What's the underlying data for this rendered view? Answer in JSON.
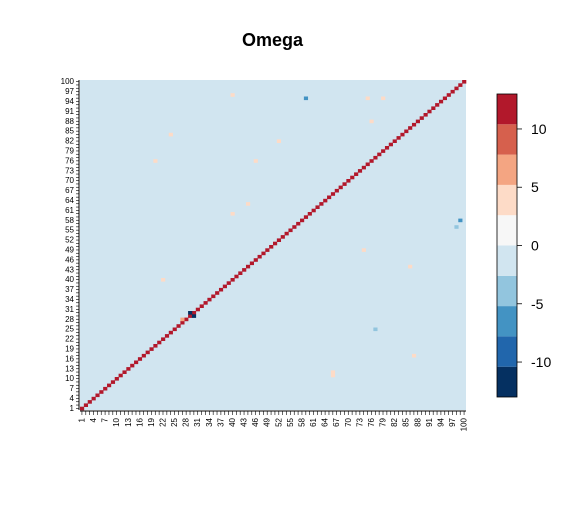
{
  "chart_data": {
    "type": "heatmap",
    "title": "Omega",
    "xlabel": "",
    "ylabel": "",
    "n": 100,
    "x_tick_labels": [
      "1",
      "4",
      "7",
      "10",
      "13",
      "16",
      "19",
      "22",
      "25",
      "28",
      "31",
      "34",
      "37",
      "40",
      "43",
      "46",
      "49",
      "52",
      "55",
      "58",
      "61",
      "64",
      "67",
      "70",
      "73",
      "76",
      "79",
      "82",
      "85",
      "88",
      "91",
      "94",
      "97",
      "100"
    ],
    "y_tick_labels": [
      "1",
      "4",
      "7",
      "10",
      "13",
      "16",
      "19",
      "22",
      "25",
      "28",
      "31",
      "34",
      "37",
      "40",
      "43",
      "46",
      "49",
      "52",
      "55",
      "58",
      "61",
      "64",
      "67",
      "70",
      "73",
      "76",
      "79",
      "82",
      "85",
      "88",
      "91",
      "94",
      "97",
      "100"
    ],
    "diagonal_value": 12,
    "background_value": 0,
    "offdiagonal_highlights": [
      {
        "row": 30,
        "col": 29,
        "value": -12
      },
      {
        "row": 29,
        "col": 30,
        "value": -12
      },
      {
        "row": 28,
        "col": 27,
        "value": 6
      },
      {
        "row": 58,
        "col": 99,
        "value": -7
      },
      {
        "row": 95,
        "col": 59,
        "value": -7
      },
      {
        "row": 56,
        "col": 98,
        "value": -4
      },
      {
        "row": 25,
        "col": 77,
        "value": -3
      },
      {
        "row": 12,
        "col": 66,
        "value": 3
      },
      {
        "row": 11,
        "col": 66,
        "value": 3
      },
      {
        "row": 84,
        "col": 24,
        "value": 3
      },
      {
        "row": 76,
        "col": 46,
        "value": 3
      },
      {
        "row": 96,
        "col": 40,
        "value": 3
      },
      {
        "row": 95,
        "col": 75,
        "value": 3
      },
      {
        "row": 95,
        "col": 79,
        "value": 3
      },
      {
        "row": 88,
        "col": 76,
        "value": 3
      },
      {
        "row": 76,
        "col": 20,
        "value": 3
      },
      {
        "row": 60,
        "col": 40,
        "value": 3
      },
      {
        "row": 44,
        "col": 86,
        "value": 3
      },
      {
        "row": 40,
        "col": 22,
        "value": 3
      },
      {
        "row": 49,
        "col": 74,
        "value": 3
      },
      {
        "row": 17,
        "col": 87,
        "value": 3
      },
      {
        "row": 82,
        "col": 52,
        "value": 3
      },
      {
        "row": 63,
        "col": 44,
        "value": 3
      }
    ],
    "legend": {
      "position": "right",
      "breaks": [
        -13,
        -10.4,
        -7.8,
        -5.2,
        -2.6,
        0,
        2.6,
        5.2,
        7.8,
        10.4,
        13
      ],
      "colors": [
        "#053061",
        "#2166ac",
        "#4393c3",
        "#92c5de",
        "#d1e5f0",
        "#f7f7f7",
        "#fddbc7",
        "#f4a582",
        "#d6604d",
        "#b2182b",
        "#67001f"
      ],
      "tick_labels": [
        "10",
        "5",
        "0",
        "-5",
        "-10"
      ],
      "tick_values": [
        10,
        5,
        0,
        -5,
        -10
      ]
    }
  }
}
